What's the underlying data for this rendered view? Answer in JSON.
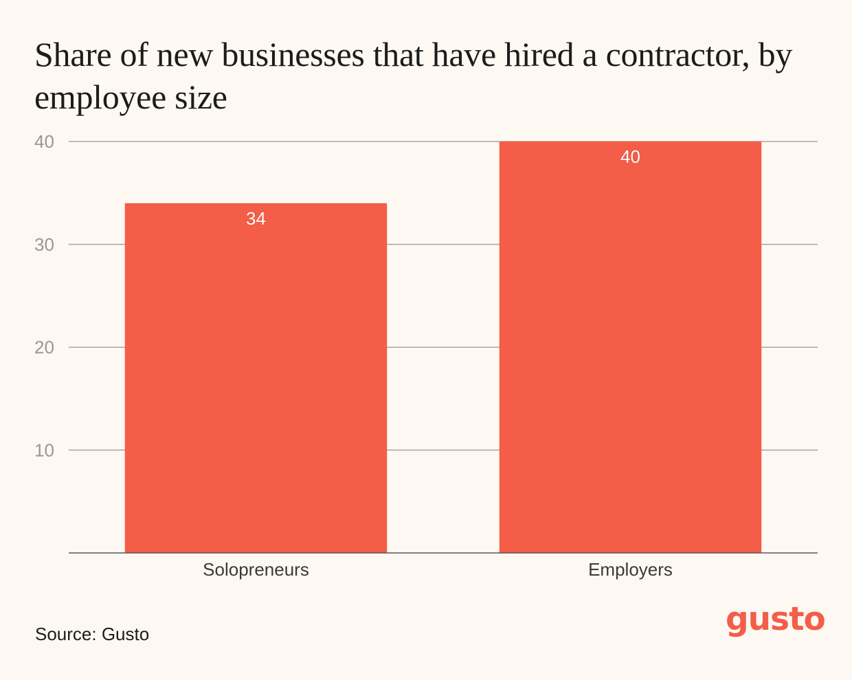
{
  "chart_data": {
    "type": "bar",
    "title": "Share of new businesses that have hired a contractor, by employee size",
    "categories": [
      "Solopreneurs",
      "Employers"
    ],
    "values": [
      34,
      40
    ],
    "data_labels": [
      "34",
      "40"
    ],
    "xlabel": "",
    "ylabel": "",
    "ylim": [
      0,
      40
    ],
    "yticks": [
      10,
      20,
      30,
      40
    ],
    "grid": true,
    "legend": "none",
    "bar_color": "#f45d48"
  },
  "source_text": "Source: Gusto",
  "logo_text": "gusto",
  "colors": {
    "background": "#fdf8f2",
    "bar": "#f45d48",
    "gridline": "#9a9692",
    "tick_label": "#9a9692",
    "category_label": "#3a3a3a",
    "data_label": "#ffffff",
    "brand": "#f45d48"
  }
}
